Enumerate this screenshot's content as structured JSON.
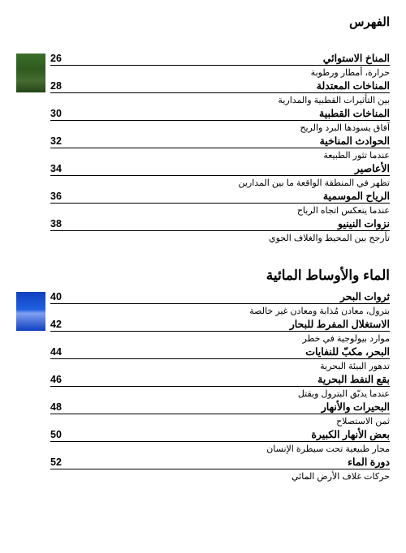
{
  "header": "الفهرس",
  "sections": [
    {
      "title": null,
      "thumb": "green",
      "entries": [
        {
          "title": "المناخ الاستوائي",
          "page": "26",
          "sub": "حرارة، أمطار ورطوبة"
        },
        {
          "title": "المناخات المعتدلة",
          "page": "28",
          "sub": "بين التأثيرات القطبية والمدارية"
        },
        {
          "title": "المناخات القطبية",
          "page": "30",
          "sub": "آفاق يسودها البرد والريح"
        },
        {
          "title": "الحوادث المناخية",
          "page": "32",
          "sub": "عندما تثور الطبيعة"
        },
        {
          "title": "الأعاصير",
          "page": "34",
          "sub": "تظهر في المنطقة الواقعة ما بين المدارين"
        },
        {
          "title": "الرياح الموسمية",
          "page": "36",
          "sub": "عندما ينعكس اتجاه الرياح"
        },
        {
          "title": "نزوات النينيو",
          "page": "38",
          "sub": "تأرجح بين المحيط والغلاف الجوي"
        }
      ]
    },
    {
      "title": "الماء والأوساط المائية",
      "thumb": "blue",
      "entries": [
        {
          "title": "ثروات البحر",
          "page": "40",
          "sub": "بترول، معادن مُذابة ومعادن غير خالصة"
        },
        {
          "title": "الاستغلال المفرط للبحار",
          "page": "42",
          "sub": "موارد بيولوجية في خطر"
        },
        {
          "title": "البحر، مكبّ للنفايات",
          "page": "44",
          "sub": "تدهور البيئة البحرية"
        },
        {
          "title": "بقع النفط البحرية",
          "page": "46",
          "sub": "عندما يدبّق البترول ويقتل"
        },
        {
          "title": "البحيرات والأنهار",
          "page": "48",
          "sub": "ثمن الاستصلاح"
        },
        {
          "title": "بعض الأنهار الكبيرة",
          "page": "50",
          "sub": "مجار طبيعية تحت سيطرة الإنسان"
        },
        {
          "title": "دورة الماء",
          "page": "52",
          "sub": "حركات غلاف الأرض المائي"
        }
      ]
    }
  ]
}
